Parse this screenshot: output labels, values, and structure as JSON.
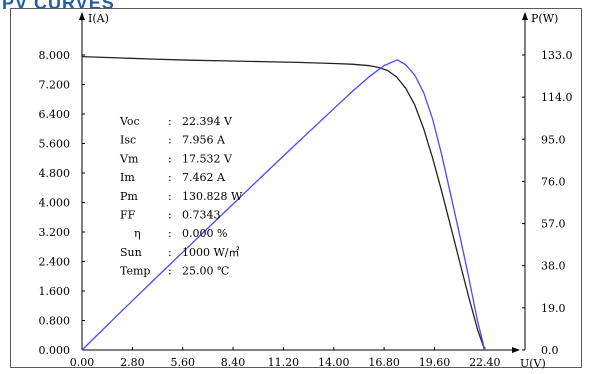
{
  "header": {
    "title": "PV CURVES"
  },
  "chart_data": {
    "type": "line",
    "xlabel": "U(V)",
    "ylabel_left": "I(A)",
    "ylabel_right": "P(W)",
    "xlim": [
      0,
      23.8
    ],
    "ylim_left": [
      0,
      8.0
    ],
    "ylim_right": [
      0,
      133.0
    ],
    "x_ticks": [
      "0.00",
      "2.80",
      "5.60",
      "8.40",
      "11.20",
      "14.00",
      "16.80",
      "19.60",
      "22.40"
    ],
    "y_left_ticks": [
      "8.000",
      "7.200",
      "6.400",
      "5.600",
      "4.800",
      "4.000",
      "3.200",
      "2.400",
      "1.600",
      "0.800",
      "0.000"
    ],
    "y_right_ticks": [
      "133.0",
      "114.0",
      "95.0",
      "76.0",
      "57.0",
      "38.0",
      "19.0",
      "0.0"
    ],
    "series": [
      {
        "color": "#222222",
        "axis": "left",
        "x": [
          0,
          2,
          4,
          6,
          8,
          10,
          12,
          14,
          15,
          16,
          16.5,
          17,
          17.5,
          18,
          18.5,
          19,
          19.5,
          20,
          20.5,
          21,
          21.5,
          22,
          22.394
        ],
        "y": [
          7.956,
          7.92,
          7.89,
          7.86,
          7.84,
          7.82,
          7.8,
          7.77,
          7.75,
          7.71,
          7.66,
          7.58,
          7.4,
          7.1,
          6.65,
          6.0,
          5.2,
          4.3,
          3.35,
          2.4,
          1.45,
          0.55,
          0.0
        ]
      },
      {
        "color": "#4a4aff",
        "axis": "right",
        "x": [
          0,
          2,
          4,
          6,
          8,
          10,
          12,
          14,
          15,
          16,
          16.8,
          17.532,
          18,
          18.5,
          19,
          19.5,
          20,
          20.5,
          21,
          21.5,
          22,
          22.394
        ],
        "y": [
          0,
          15.9,
          31.6,
          47.2,
          62.7,
          78.2,
          93.6,
          108.8,
          116.3,
          123.4,
          128.2,
          130.828,
          128.6,
          124.0,
          116.0,
          104.0,
          88.0,
          70.0,
          52.0,
          33.0,
          13.0,
          0
        ]
      }
    ],
    "info": [
      {
        "name": "Voc",
        "value": "22.394 V"
      },
      {
        "name": "Isc",
        "value": "7.956 A"
      },
      {
        "name": "Vm",
        "value": "17.532 V"
      },
      {
        "name": "Im",
        "value": "7.462 A"
      },
      {
        "name": "Pm",
        "value": "130.828 W"
      },
      {
        "name": "FF",
        "value": "0.7343"
      },
      {
        "name": "η",
        "value": "0.000 %"
      },
      {
        "name": "Sun",
        "value": "1000 W/㎡"
      },
      {
        "name": "Temp",
        "value": "25.00 ℃"
      }
    ]
  }
}
